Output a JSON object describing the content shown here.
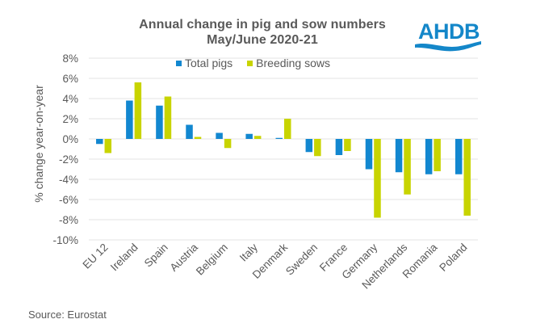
{
  "logo": {
    "text": "AHDB",
    "color": "#1487c9"
  },
  "source": "Source: Eurostat",
  "chart_data": {
    "type": "bar",
    "title": "Annual change in pig and sow numbers",
    "subtitle": "May/June 2020-21",
    "xlabel": "",
    "ylabel": "% change year-on-year",
    "ylim": [
      -10,
      8
    ],
    "yticks": [
      8,
      6,
      4,
      2,
      0,
      -2,
      -4,
      -6,
      -8,
      -10
    ],
    "ytick_labels": [
      "8%",
      "6%",
      "4%",
      "2%",
      "0%",
      "-2%",
      "-4%",
      "-6%",
      "-8%",
      "-10%"
    ],
    "grid": true,
    "legend_position": "top-center",
    "categories": [
      "EU 12",
      "Ireland",
      "Spain",
      "Austria",
      "Belgium",
      "Italy",
      "Denmark",
      "Sweden",
      "France",
      "Germany",
      "Netherlands",
      "Romania",
      "Poland"
    ],
    "series": [
      {
        "name": "Total pigs",
        "color": "#1287d0",
        "values": [
          -0.5,
          3.8,
          3.3,
          1.4,
          0.6,
          0.5,
          0.1,
          -1.3,
          -1.6,
          -3.0,
          -3.3,
          -3.5,
          -3.5
        ]
      },
      {
        "name": "Breeding sows",
        "color": "#c8d400",
        "values": [
          -1.4,
          5.6,
          4.2,
          0.2,
          -0.9,
          0.3,
          2.0,
          -1.7,
          -1.2,
          -7.8,
          -5.5,
          -3.2,
          -7.6
        ]
      }
    ]
  }
}
